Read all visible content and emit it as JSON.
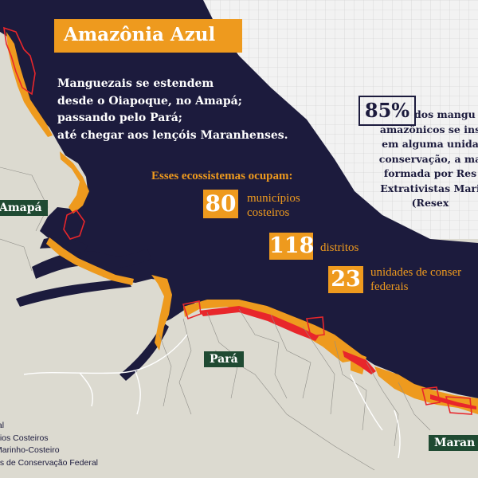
{
  "title": "Amazônia Azul",
  "intro": [
    "Manguezais se estendem",
    "desde o Oiapoque, no Amapá;",
    "passando pelo Pará;",
    "até chegar aos lençóis Maranhenses."
  ],
  "ecosystems_heading": "Esses ecossistemas ocupam:",
  "stats": [
    {
      "value": "80",
      "label": [
        "municípios",
        "costeiros"
      ]
    },
    {
      "value": "118",
      "label": [
        "distritos"
      ]
    },
    {
      "value": "23",
      "label": [
        "unidades de conser",
        "federais"
      ]
    }
  ],
  "percent_note": {
    "value": "85%",
    "lines": [
      "dos mangu",
      "amazônicos se ins",
      "em alguma unida",
      "conservação, a ma",
      "formada por Res",
      "Extrativistas Mari",
      "(Resex"
    ]
  },
  "regions": {
    "amapa": "Amapá",
    "para": "Pará",
    "maranhao": "Maran"
  },
  "legend": [
    "tal",
    "pios Costeiros",
    "Marinho-Costeiro",
    "es de Conservação Federal"
  ],
  "colors": {
    "ocean": "#1c1b3d",
    "land": "#dcdad0",
    "mangrove": "#ee9a1e",
    "conservation_units": "#e8262b",
    "region_label": "#1f4a32"
  }
}
